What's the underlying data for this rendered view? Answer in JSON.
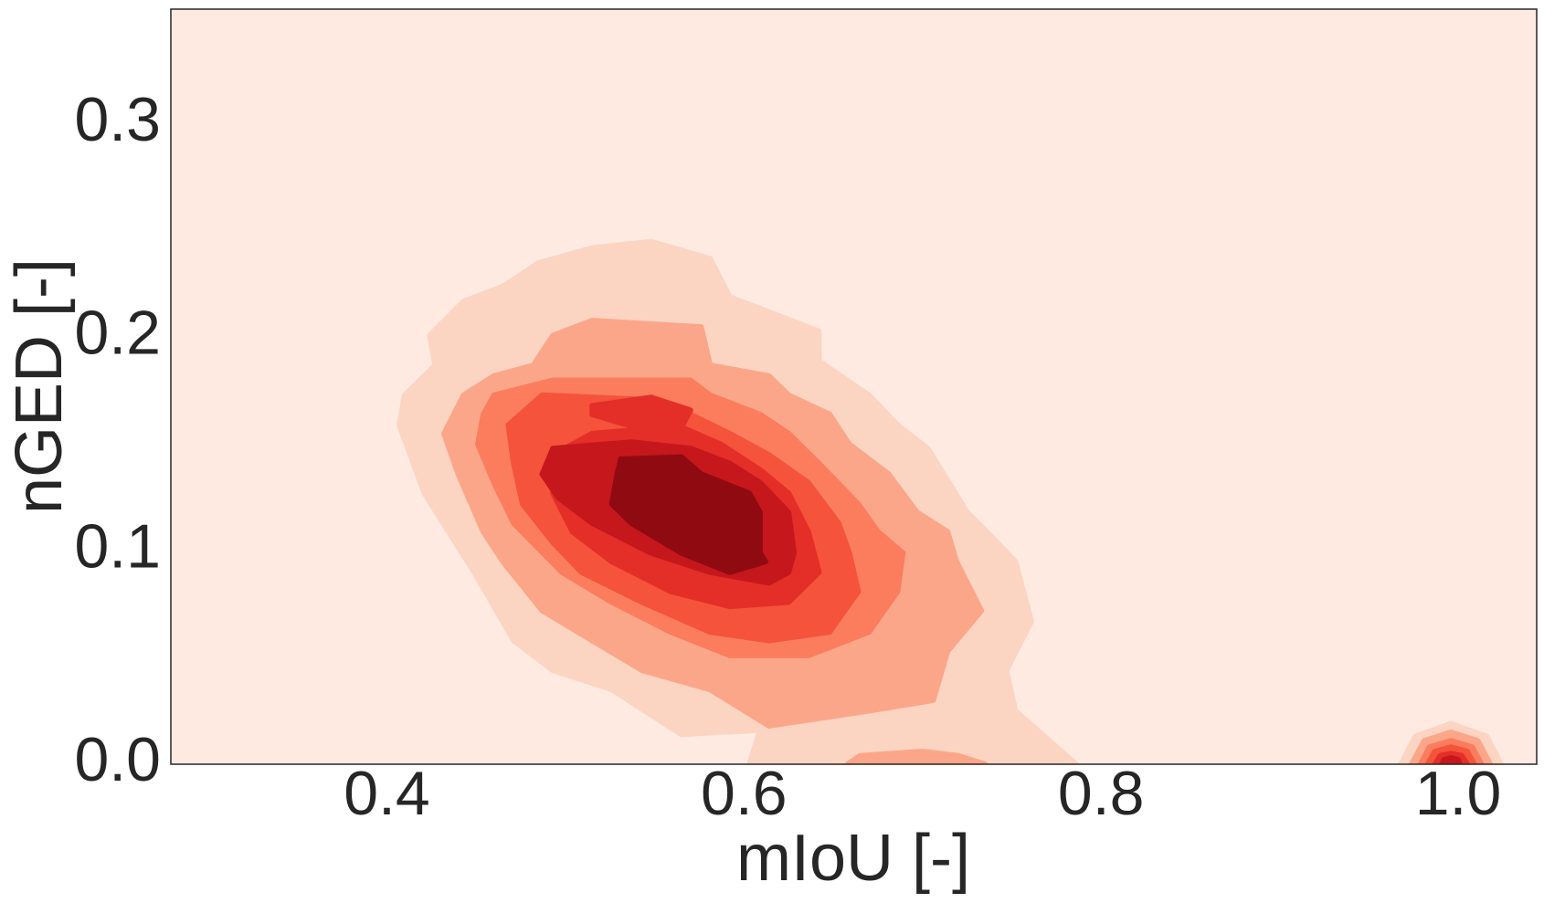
{
  "chart_data": {
    "type": "kde",
    "xlabel": "mIoU [-]",
    "ylabel": "nGED [-]",
    "xlim": [
      0.279,
      1.044
    ],
    "ylim": [
      0,
      0.354
    ],
    "xticks": [
      0.4,
      0.6,
      0.8,
      {
        "value": 1.0,
        "label": "1.0"
      }
    ],
    "yticks": [
      {
        "value": 0,
        "label": "0.0"
      },
      0.1,
      0.2,
      0.3
    ],
    "background": "#feeae1",
    "contours": [
      {
        "color": "#fcd4c2",
        "x": [
          0.485,
          0.515,
          0.548,
          0.581,
          0.592,
          0.614,
          0.642,
          0.642,
          0.67,
          0.686,
          0.703,
          0.725,
          0.736,
          0.752,
          0.761,
          0.747,
          0.752,
          0.786,
          0.603,
          0.609,
          0.565,
          0.526,
          0.493,
          0.471,
          0.449,
          0.421,
          0.407,
          0.41,
          0.427,
          0.424,
          0.443,
          0.465
        ],
        "y": [
          0.235,
          0.242,
          0.245,
          0.237,
          0.219,
          0.212,
          0.203,
          0.189,
          0.173,
          0.159,
          0.148,
          0.118,
          0.109,
          0.095,
          0.067,
          0.044,
          0.025,
          0,
          0,
          0.016,
          0.014,
          0.035,
          0.044,
          0.058,
          0.09,
          0.127,
          0.159,
          0.173,
          0.187,
          0.201,
          0.217,
          0.224
        ]
      },
      {
        "color": "#fcd4c2",
        "x": [
          0.968,
          0.976,
          0.996,
          1.016,
          1.024
        ],
        "y": [
          0,
          0.013,
          0.019,
          0.013,
          0
        ]
      },
      {
        "color": "#fca689",
        "x": [
          0.493,
          0.515,
          0.576,
          0.581,
          0.614,
          0.625,
          0.648,
          0.659,
          0.681,
          0.697,
          0.714,
          0.719,
          0.733,
          0.714,
          0.706,
          0.67,
          0.614,
          0.581,
          0.543,
          0.515,
          0.487,
          0.465,
          0.454,
          0.44,
          0.432,
          0.443,
          0.46,
          0.482
        ],
        "y": [
          0.201,
          0.208,
          0.205,
          0.187,
          0.182,
          0.173,
          0.164,
          0.15,
          0.136,
          0.118,
          0.109,
          0.095,
          0.072,
          0.053,
          0.03,
          0.025,
          0.018,
          0.035,
          0.044,
          0.058,
          0.072,
          0.095,
          0.109,
          0.136,
          0.155,
          0.173,
          0.182,
          0.187
        ]
      },
      {
        "color": "#fca689",
        "x": [
          0.658,
          0.665,
          0.7,
          0.72,
          0.735
        ],
        "y": [
          0,
          0.004,
          0.006,
          0.004,
          0
        ]
      },
      {
        "color": "#fca689",
        "x": [
          0.974,
          0.981,
          0.996,
          1.011,
          1.018
        ],
        "y": [
          0,
          0.011,
          0.015,
          0.011,
          0
        ]
      },
      {
        "color": "#fb7d5e",
        "x": [
          0.46,
          0.493,
          0.57,
          0.581,
          0.609,
          0.625,
          0.642,
          0.664,
          0.675,
          0.689,
          0.686,
          0.67,
          0.636,
          0.592,
          0.559,
          0.526,
          0.498,
          0.471,
          0.46,
          0.451,
          0.454
        ],
        "y": [
          0.173,
          0.18,
          0.18,
          0.173,
          0.164,
          0.155,
          0.141,
          0.122,
          0.109,
          0.099,
          0.081,
          0.062,
          0.051,
          0.051,
          0.062,
          0.076,
          0.09,
          0.113,
          0.132,
          0.15,
          0.164
        ]
      },
      {
        "color": "#fb7d5e",
        "x": [
          0.979,
          0.984,
          0.996,
          1.008,
          1.013
        ],
        "y": [
          0,
          0.008,
          0.011,
          0.008,
          0
        ]
      },
      {
        "color": "#f5533b",
        "x": [
          0.487,
          0.543,
          0.57,
          0.592,
          0.614,
          0.636,
          0.653,
          0.659,
          0.664,
          0.648,
          0.614,
          0.581,
          0.543,
          0.509,
          0.493,
          0.476,
          0.471,
          0.468
        ],
        "y": [
          0.173,
          0.171,
          0.164,
          0.155,
          0.145,
          0.132,
          0.113,
          0.099,
          0.081,
          0.062,
          0.058,
          0.062,
          0.076,
          0.09,
          0.104,
          0.122,
          0.141,
          0.159
        ]
      },
      {
        "color": "#f5533b",
        "x": [
          0.983,
          0.987,
          0.996,
          1.005,
          1.009
        ],
        "y": [
          0,
          0.006,
          0.008,
          0.006,
          0
        ]
      },
      {
        "color": "#e32f27",
        "x": [
          0.515,
          0.548,
          0.57,
          0.565,
          0.587,
          0.609,
          0.625,
          0.636,
          0.642,
          0.625,
          0.592,
          0.559,
          0.526,
          0.504,
          0.493,
          0.493,
          0.515,
          0.543,
          0.515
        ],
        "y": [
          0.168,
          0.172,
          0.166,
          0.158,
          0.15,
          0.138,
          0.127,
          0.109,
          0.09,
          0.076,
          0.074,
          0.081,
          0.095,
          0.109,
          0.127,
          0.145,
          0.155,
          0.157,
          0.164
        ]
      },
      {
        "color": "#e32f27",
        "x": [
          0.987,
          0.99,
          0.996,
          1.002,
          1.005
        ],
        "y": [
          0,
          0.004,
          0.005,
          0.004,
          0
        ]
      },
      {
        "color": "#c5171c",
        "x": [
          0.493,
          0.537,
          0.57,
          0.592,
          0.609,
          0.625,
          0.628,
          0.625,
          0.614,
          0.581,
          0.548,
          0.515,
          0.496,
          0.487
        ],
        "y": [
          0.148,
          0.151,
          0.148,
          0.141,
          0.132,
          0.118,
          0.099,
          0.09,
          0.085,
          0.09,
          0.099,
          0.113,
          0.125,
          0.136
        ]
      },
      {
        "color": "#c5171c",
        "x": [
          0.991,
          0.992,
          0.996,
          1.0,
          1.001
        ],
        "y": [
          0,
          0.002,
          0.003,
          0.002,
          0
        ]
      },
      {
        "color": "#900a12",
        "x": [
          0.531,
          0.565,
          0.576,
          0.603,
          0.609,
          0.609,
          0.612,
          0.592,
          0.565,
          0.537,
          0.526,
          0.529
        ],
        "y": [
          0.143,
          0.144,
          0.136,
          0.127,
          0.118,
          0.099,
          0.095,
          0.09,
          0.099,
          0.113,
          0.122,
          0.136
        ]
      }
    ]
  }
}
